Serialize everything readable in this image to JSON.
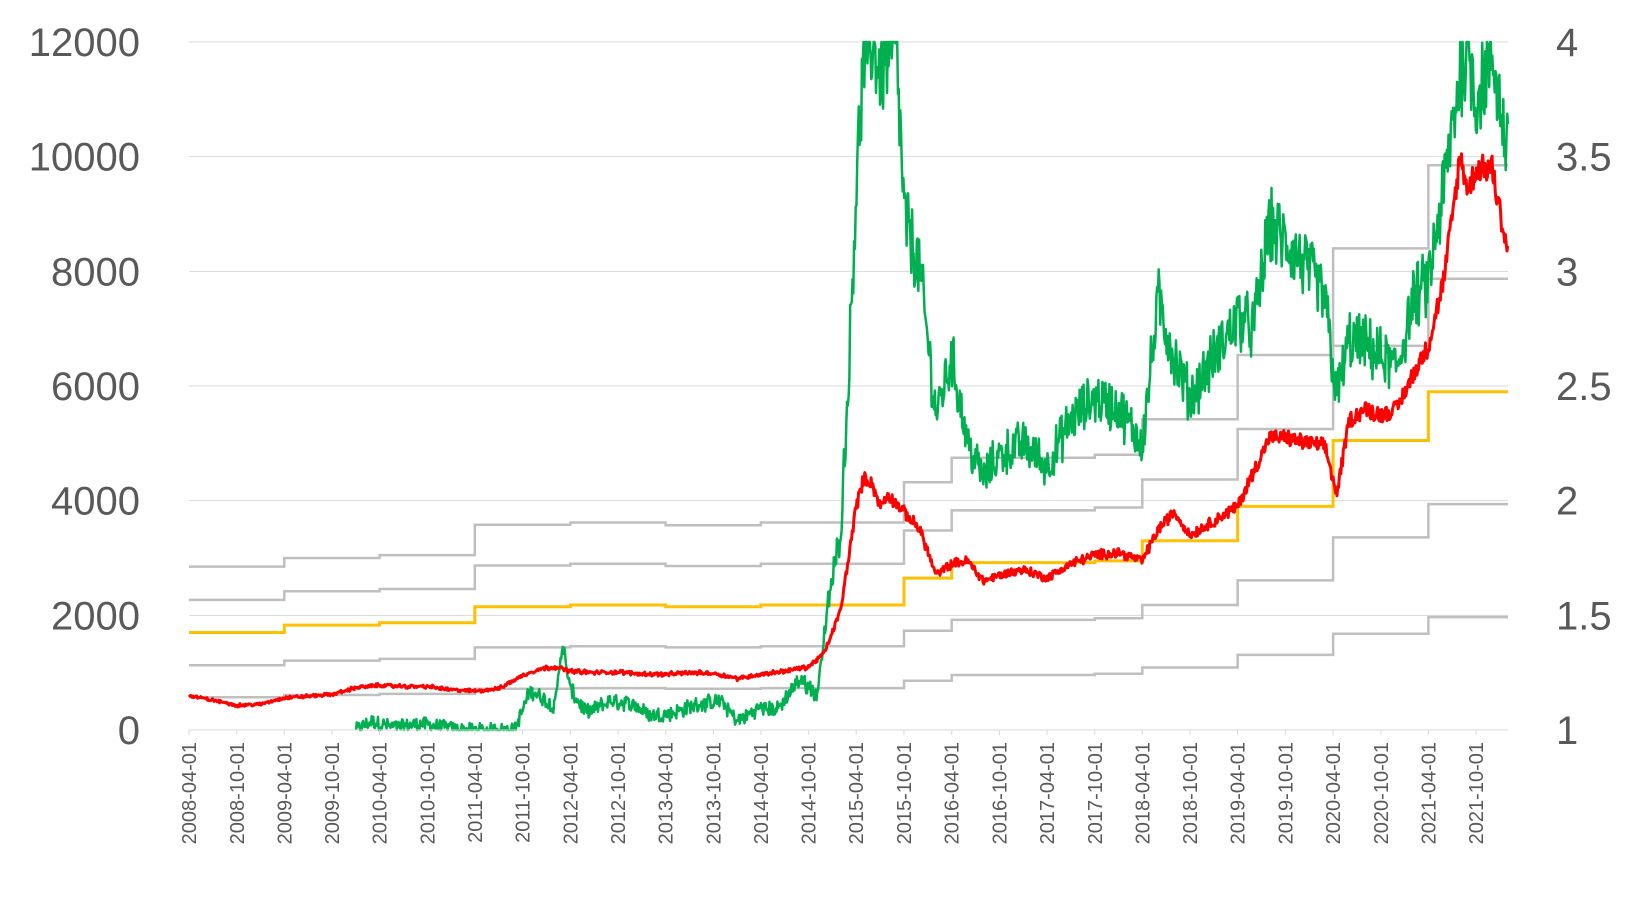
{
  "chart_data": {
    "type": "line",
    "title": "",
    "xlabel": "",
    "ylabel": "",
    "grid": "horizontal",
    "x_type": "date",
    "xlim": [
      "2008-04-01",
      "2022-01-31"
    ],
    "x_tick_labels": [
      "2008-04-01",
      "2008-10-01",
      "2009-04-01",
      "2009-10-01",
      "2010-04-01",
      "2010-10-01",
      "2011-04-01",
      "2011-10-01",
      "2012-04-01",
      "2012-10-01",
      "2013-04-01",
      "2013-10-01",
      "2014-04-01",
      "2014-10-01",
      "2015-04-01",
      "2015-10-01",
      "2016-04-01",
      "2016-10-01",
      "2017-04-01",
      "2017-10-01",
      "2018-04-01",
      "2018-10-01",
      "2019-04-01",
      "2019-10-01",
      "2020-04-01",
      "2020-10-01",
      "2021-04-01",
      "2021-10-01"
    ],
    "y_left": {
      "ylim": [
        0,
        12000
      ],
      "ticks": [
        "0",
        "2000",
        "4000",
        "6000",
        "8000",
        "10000",
        "12000"
      ]
    },
    "y_right": {
      "ylim": [
        1,
        4
      ],
      "ticks": [
        "1",
        "1.5",
        "2",
        "2.5",
        "3",
        "3.5",
        "4"
      ]
    },
    "series": [
      {
        "axis": "left",
        "color": "#ff0000",
        "style": "noisy",
        "points": [
          [
            "2008-04-01",
            600
          ],
          [
            "2008-07-01",
            520
          ],
          [
            "2008-10-01",
            430
          ],
          [
            "2009-01-01",
            450
          ],
          [
            "2009-04-01",
            560
          ],
          [
            "2009-07-01",
            590
          ],
          [
            "2009-10-01",
            620
          ],
          [
            "2010-01-01",
            740
          ],
          [
            "2010-04-01",
            780
          ],
          [
            "2010-07-01",
            760
          ],
          [
            "2010-10-01",
            760
          ],
          [
            "2011-01-01",
            700
          ],
          [
            "2011-04-01",
            680
          ],
          [
            "2011-07-01",
            720
          ],
          [
            "2011-10-01",
            950
          ],
          [
            "2011-12-01",
            1060
          ],
          [
            "2012-02-01",
            1100
          ],
          [
            "2012-04-01",
            1030
          ],
          [
            "2012-07-01",
            1000
          ],
          [
            "2012-10-01",
            1010
          ],
          [
            "2013-01-01",
            980
          ],
          [
            "2013-04-01",
            970
          ],
          [
            "2013-07-01",
            1000
          ],
          [
            "2013-10-01",
            990
          ],
          [
            "2014-01-01",
            900
          ],
          [
            "2014-04-01",
            970
          ],
          [
            "2014-07-01",
            1030
          ],
          [
            "2014-10-01",
            1100
          ],
          [
            "2014-12-01",
            1350
          ],
          [
            "2015-02-01",
            2100
          ],
          [
            "2015-04-01",
            3900
          ],
          [
            "2015-05-01",
            4400
          ],
          [
            "2015-06-01",
            4300
          ],
          [
            "2015-07-01",
            3900
          ],
          [
            "2015-08-01",
            4100
          ],
          [
            "2015-10-01",
            3800
          ],
          [
            "2015-12-01",
            3500
          ],
          [
            "2016-02-01",
            2700
          ],
          [
            "2016-04-01",
            2900
          ],
          [
            "2016-06-01",
            2950
          ],
          [
            "2016-08-01",
            2600
          ],
          [
            "2016-10-01",
            2700
          ],
          [
            "2017-01-01",
            2800
          ],
          [
            "2017-04-01",
            2650
          ],
          [
            "2017-07-01",
            2900
          ],
          [
            "2017-10-01",
            3050
          ],
          [
            "2018-01-01",
            3100
          ],
          [
            "2018-04-01",
            2950
          ],
          [
            "2018-06-01",
            3500
          ],
          [
            "2018-08-01",
            3800
          ],
          [
            "2018-10-01",
            3400
          ],
          [
            "2019-01-01",
            3650
          ],
          [
            "2019-04-01",
            3900
          ],
          [
            "2019-06-01",
            4500
          ],
          [
            "2019-08-01",
            5100
          ],
          [
            "2019-10-01",
            5100
          ],
          [
            "2020-01-01",
            5000
          ],
          [
            "2020-03-01",
            4950
          ],
          [
            "2020-04-15",
            4100
          ],
          [
            "2020-06-01",
            5400
          ],
          [
            "2020-08-01",
            5600
          ],
          [
            "2020-10-01",
            5500
          ],
          [
            "2020-12-01",
            5600
          ],
          [
            "2021-02-01",
            6200
          ],
          [
            "2021-04-01",
            6700
          ],
          [
            "2021-06-01",
            7900
          ],
          [
            "2021-08-01",
            10000
          ],
          [
            "2021-09-01",
            9400
          ],
          [
            "2021-10-01",
            9800
          ],
          [
            "2021-12-01",
            9800
          ],
          [
            "2022-01-31",
            8300
          ]
        ]
      },
      {
        "axis": "left",
        "color": "#00b050",
        "style": "very-noisy",
        "points": [
          [
            "2010-01-01",
            0
          ],
          [
            "2010-03-01",
            150
          ],
          [
            "2010-06-01",
            40
          ],
          [
            "2010-09-01",
            110
          ],
          [
            "2010-12-01",
            50
          ],
          [
            "2011-02-01",
            0
          ],
          [
            "2011-09-01",
            0
          ],
          [
            "2011-11-01",
            700
          ],
          [
            "2011-12-01",
            600
          ],
          [
            "2012-02-01",
            400
          ],
          [
            "2012-03-01",
            1500
          ],
          [
            "2012-04-01",
            700
          ],
          [
            "2012-06-01",
            300
          ],
          [
            "2012-09-01",
            500
          ],
          [
            "2012-12-01",
            450
          ],
          [
            "2013-02-01",
            250
          ],
          [
            "2013-05-01",
            300
          ],
          [
            "2013-08-01",
            450
          ],
          [
            "2013-11-01",
            500
          ],
          [
            "2014-01-01",
            150
          ],
          [
            "2014-04-01",
            400
          ],
          [
            "2014-06-01",
            350
          ],
          [
            "2014-09-01",
            900
          ],
          [
            "2014-11-01",
            600
          ],
          [
            "2014-12-15",
            2200
          ],
          [
            "2015-02-01",
            3500
          ],
          [
            "2015-03-01",
            6000
          ],
          [
            "2015-04-01",
            9500
          ],
          [
            "2015-05-01",
            11800
          ],
          [
            "2015-06-01",
            12000
          ],
          [
            "2015-07-01",
            11500
          ],
          [
            "2015-09-01",
            12000
          ],
          [
            "2015-10-01",
            9000
          ],
          [
            "2015-12-01",
            8000
          ],
          [
            "2016-02-01",
            5500
          ],
          [
            "2016-04-01",
            6500
          ],
          [
            "2016-06-01",
            5000
          ],
          [
            "2016-08-01",
            4400
          ],
          [
            "2016-10-01",
            4800
          ],
          [
            "2017-01-01",
            5000
          ],
          [
            "2017-04-01",
            4600
          ],
          [
            "2017-07-01",
            5400
          ],
          [
            "2017-10-01",
            5800
          ],
          [
            "2018-01-01",
            5600
          ],
          [
            "2018-04-01",
            5000
          ],
          [
            "2018-06-01",
            7500
          ],
          [
            "2018-08-01",
            6500
          ],
          [
            "2018-10-01",
            5800
          ],
          [
            "2019-01-01",
            6500
          ],
          [
            "2019-04-01",
            7200
          ],
          [
            "2019-06-01",
            7000
          ],
          [
            "2019-08-01",
            8800
          ],
          [
            "2019-10-01",
            8500
          ],
          [
            "2020-01-01",
            8000
          ],
          [
            "2020-03-01",
            7500
          ],
          [
            "2020-04-15",
            5800
          ],
          [
            "2020-06-01",
            6800
          ],
          [
            "2020-08-01",
            6700
          ],
          [
            "2020-10-01",
            6500
          ],
          [
            "2020-12-01",
            6300
          ],
          [
            "2021-02-01",
            7500
          ],
          [
            "2021-04-01",
            7800
          ],
          [
            "2021-06-01",
            9500
          ],
          [
            "2021-08-01",
            11500
          ],
          [
            "2021-09-01",
            12000
          ],
          [
            "2021-10-01",
            11000
          ],
          [
            "2021-12-01",
            11800
          ],
          [
            "2022-01-31",
            10000
          ]
        ]
      },
      {
        "axis": "left",
        "color": "#ffc000",
        "style": "step",
        "points": [
          [
            "2008-04-01",
            1700
          ],
          [
            "2009-04-01",
            1830
          ],
          [
            "2010-04-01",
            1870
          ],
          [
            "2011-04-01",
            2150
          ],
          [
            "2012-04-01",
            2180
          ],
          [
            "2013-04-01",
            2150
          ],
          [
            "2014-04-01",
            2180
          ],
          [
            "2015-10-01",
            2650
          ],
          [
            "2016-04-01",
            2920
          ],
          [
            "2017-10-01",
            2950
          ],
          [
            "2018-04-01",
            3300
          ],
          [
            "2019-04-01",
            3900
          ],
          [
            "2020-04-01",
            5050
          ],
          [
            "2021-04-01",
            5900
          ],
          [
            "2022-01-31",
            5900
          ]
        ]
      },
      {
        "axis": "left",
        "color": "#bfbfbf",
        "style": "step",
        "points": [
          [
            "2008-04-01",
            2850
          ],
          [
            "2009-04-01",
            3000
          ],
          [
            "2010-04-01",
            3050
          ],
          [
            "2011-04-01",
            3580
          ],
          [
            "2012-04-01",
            3620
          ],
          [
            "2013-04-01",
            3570
          ],
          [
            "2014-04-01",
            3620
          ],
          [
            "2015-10-01",
            4320
          ],
          [
            "2016-04-01",
            4750
          ],
          [
            "2017-10-01",
            4800
          ],
          [
            "2018-04-01",
            5420
          ],
          [
            "2019-04-01",
            6540
          ],
          [
            "2020-04-01",
            8400
          ],
          [
            "2021-04-01",
            9850
          ],
          [
            "2022-01-31",
            9850
          ]
        ]
      },
      {
        "axis": "left",
        "color": "#bfbfbf",
        "style": "step",
        "points": [
          [
            "2008-04-01",
            2270
          ],
          [
            "2009-04-01",
            2420
          ],
          [
            "2010-04-01",
            2460
          ],
          [
            "2011-04-01",
            2870
          ],
          [
            "2012-04-01",
            2900
          ],
          [
            "2013-04-01",
            2860
          ],
          [
            "2014-04-01",
            2900
          ],
          [
            "2015-10-01",
            3480
          ],
          [
            "2016-04-01",
            3830
          ],
          [
            "2017-10-01",
            3880
          ],
          [
            "2018-04-01",
            4370
          ],
          [
            "2019-04-01",
            5250
          ],
          [
            "2020-04-01",
            6700
          ],
          [
            "2021-04-01",
            7870
          ],
          [
            "2022-01-31",
            7870
          ]
        ]
      },
      {
        "axis": "left",
        "color": "#bfbfbf",
        "style": "step",
        "points": [
          [
            "2008-04-01",
            1130
          ],
          [
            "2009-04-01",
            1210
          ],
          [
            "2010-04-01",
            1240
          ],
          [
            "2011-04-01",
            1440
          ],
          [
            "2012-04-01",
            1460
          ],
          [
            "2013-04-01",
            1440
          ],
          [
            "2014-04-01",
            1460
          ],
          [
            "2015-10-01",
            1730
          ],
          [
            "2016-04-01",
            1920
          ],
          [
            "2017-10-01",
            1950
          ],
          [
            "2018-04-01",
            2180
          ],
          [
            "2019-04-01",
            2610
          ],
          [
            "2020-04-01",
            3360
          ],
          [
            "2021-04-01",
            3940
          ],
          [
            "2022-01-31",
            3940
          ]
        ]
      },
      {
        "axis": "left",
        "color": "#bfbfbf",
        "style": "step",
        "points": [
          [
            "2008-04-01",
            570
          ],
          [
            "2009-04-01",
            610
          ],
          [
            "2010-04-01",
            630
          ],
          [
            "2011-04-01",
            720
          ],
          [
            "2012-04-01",
            730
          ],
          [
            "2013-04-01",
            720
          ],
          [
            "2014-04-01",
            730
          ],
          [
            "2015-10-01",
            860
          ],
          [
            "2016-04-01",
            960
          ],
          [
            "2017-10-01",
            980
          ],
          [
            "2018-04-01",
            1090
          ],
          [
            "2019-04-01",
            1310
          ],
          [
            "2020-04-01",
            1680
          ],
          [
            "2021-04-01",
            1970
          ],
          [
            "2022-01-31",
            1970
          ]
        ]
      }
    ]
  }
}
